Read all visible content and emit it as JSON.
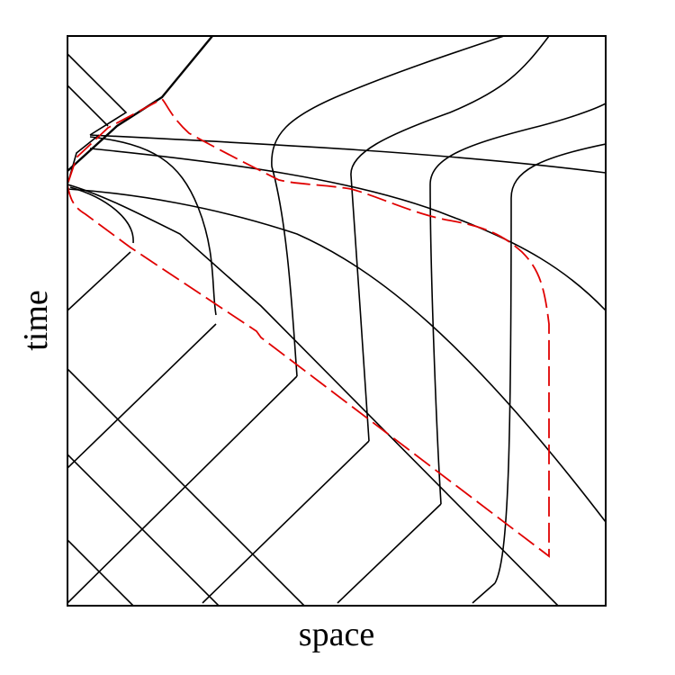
{
  "axes": {
    "x_label": "space",
    "y_label": "time"
  }
}
